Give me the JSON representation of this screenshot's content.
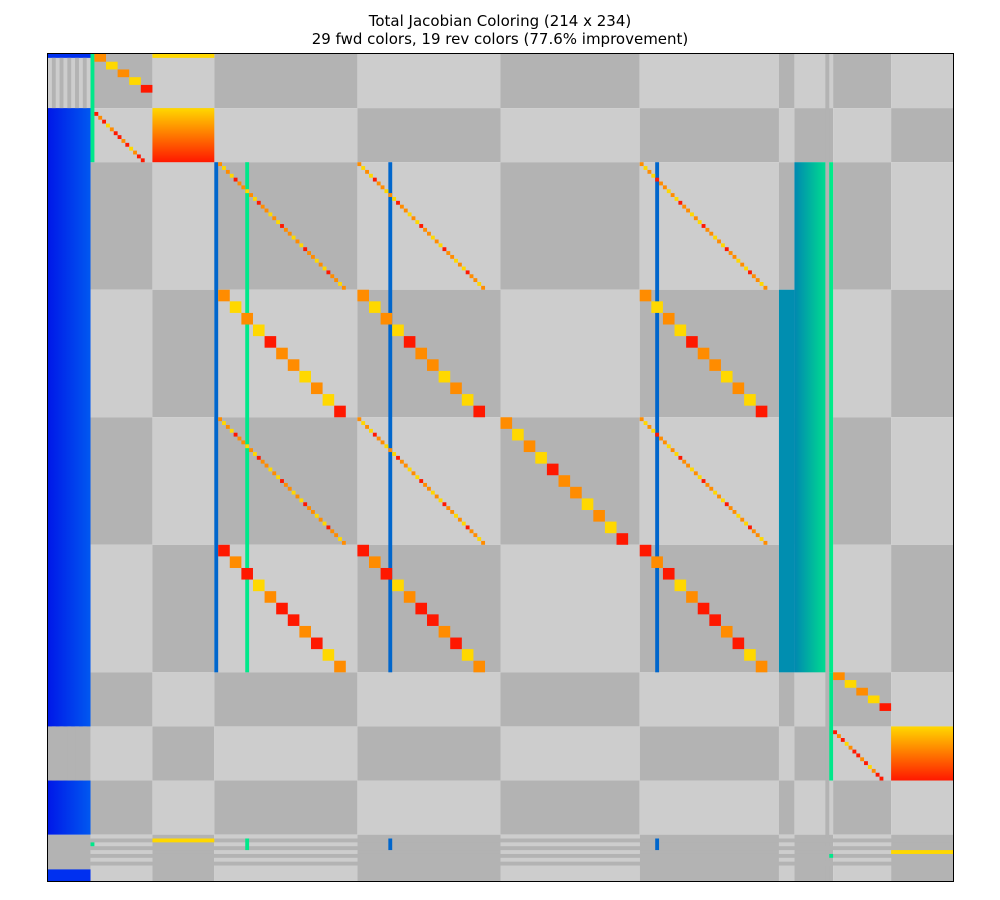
{
  "chart_data": {
    "type": "heatmap",
    "title_line1": "Total Jacobian Coloring (214 x 234)",
    "title_line2": "29 fwd colors, 19 rev colors (77.6% improvement)",
    "n_rows": 214,
    "n_cols": 234,
    "fwd_colors": 29,
    "rev_colors": 19,
    "improvement_percent": 77.6,
    "block_row_edges": [
      0,
      14,
      28,
      61,
      94,
      127,
      160,
      174,
      188,
      202,
      214
    ],
    "block_col_edges": [
      0,
      11,
      27,
      43,
      80,
      117,
      153,
      189,
      193,
      203,
      218,
      234
    ],
    "grid": false,
    "legend": "none",
    "colors": {
      "checker_light": "#cdcdcd",
      "checker_dark": "#b3b3b3",
      "blue_dark": "#0030f0",
      "blue_mid": "#0066cc",
      "teal": "#008eb0",
      "green": "#00e88a",
      "yellow": "#ffd800",
      "orange": "#ff8c00",
      "red": "#ff1800"
    }
  }
}
